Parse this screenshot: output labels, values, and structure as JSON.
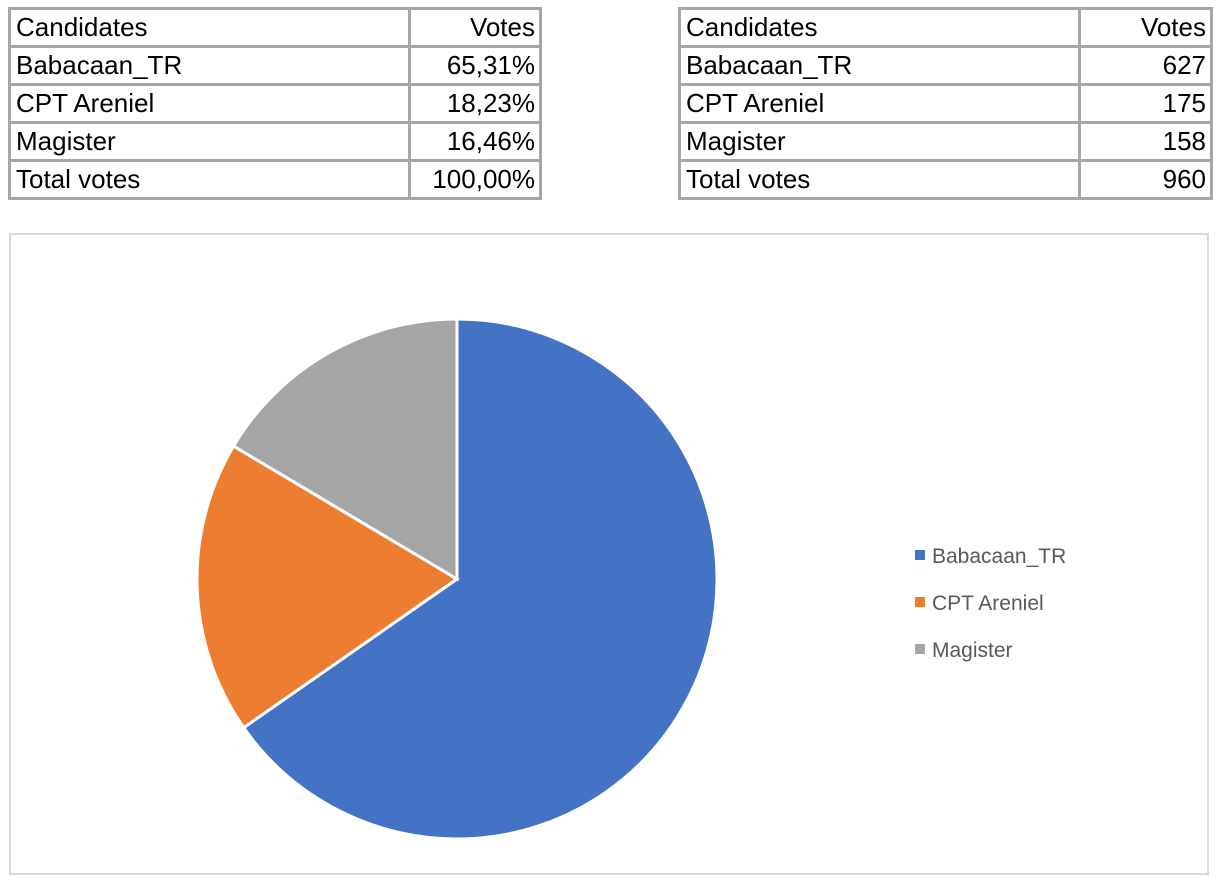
{
  "table_percent": {
    "header": [
      "Candidates",
      "Votes"
    ],
    "rows": [
      [
        "Babacaan_TR",
        "65,31%"
      ],
      [
        "CPT Areniel",
        "18,23%"
      ],
      [
        "Magister",
        "16,46%"
      ]
    ],
    "total": [
      "Total votes",
      "100,00%"
    ]
  },
  "table_count": {
    "header": [
      "Candidates",
      "Votes"
    ],
    "rows": [
      [
        "Babacaan_TR",
        "627"
      ],
      [
        "CPT Areniel",
        "175"
      ],
      [
        "Magister",
        "158"
      ]
    ],
    "total": [
      "Total votes",
      "960"
    ]
  },
  "chart_data": {
    "type": "pie",
    "categories": [
      "Babacaan_TR",
      "CPT Areniel",
      "Magister"
    ],
    "values": [
      627,
      175,
      158
    ],
    "colors": [
      "#4472c4",
      "#ed7d31",
      "#a5a5a5"
    ],
    "start_angle_deg": 0,
    "direction": "clockwise",
    "legend": "right",
    "title": ""
  }
}
